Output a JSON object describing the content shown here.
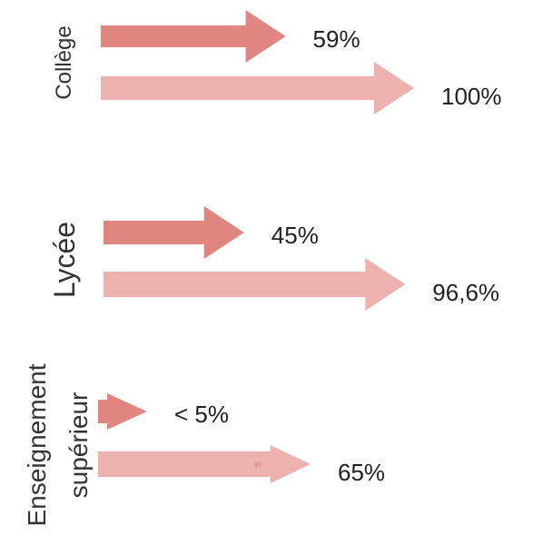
{
  "colors": {
    "dark_arrow": "#e0857f",
    "light_arrow": "#edb2ae",
    "inner_text": "#e0857f"
  },
  "chart_data": {
    "type": "bar",
    "orientation": "horizontal",
    "mark": "arrow",
    "groups": [
      {
        "label": "Collège",
        "bars": [
          {
            "value": 59,
            "label": "59%",
            "shade": "dark"
          },
          {
            "value": 100,
            "label": "100%",
            "shade": "light"
          }
        ]
      },
      {
        "label": "Lycée",
        "bars": [
          {
            "value": 45,
            "label": "45%",
            "shade": "dark"
          },
          {
            "value": 96.6,
            "label": "96,6%",
            "shade": "light"
          }
        ]
      },
      {
        "label": "Enseignement supérieur",
        "label_lines": [
          "Enseignement",
          "supérieur"
        ],
        "bars": [
          {
            "value": 5,
            "label": "< 5%",
            "shade": "dark"
          },
          {
            "value": 65,
            "label": "65%",
            "shade": "light",
            "inner_label": "65"
          }
        ]
      }
    ]
  }
}
